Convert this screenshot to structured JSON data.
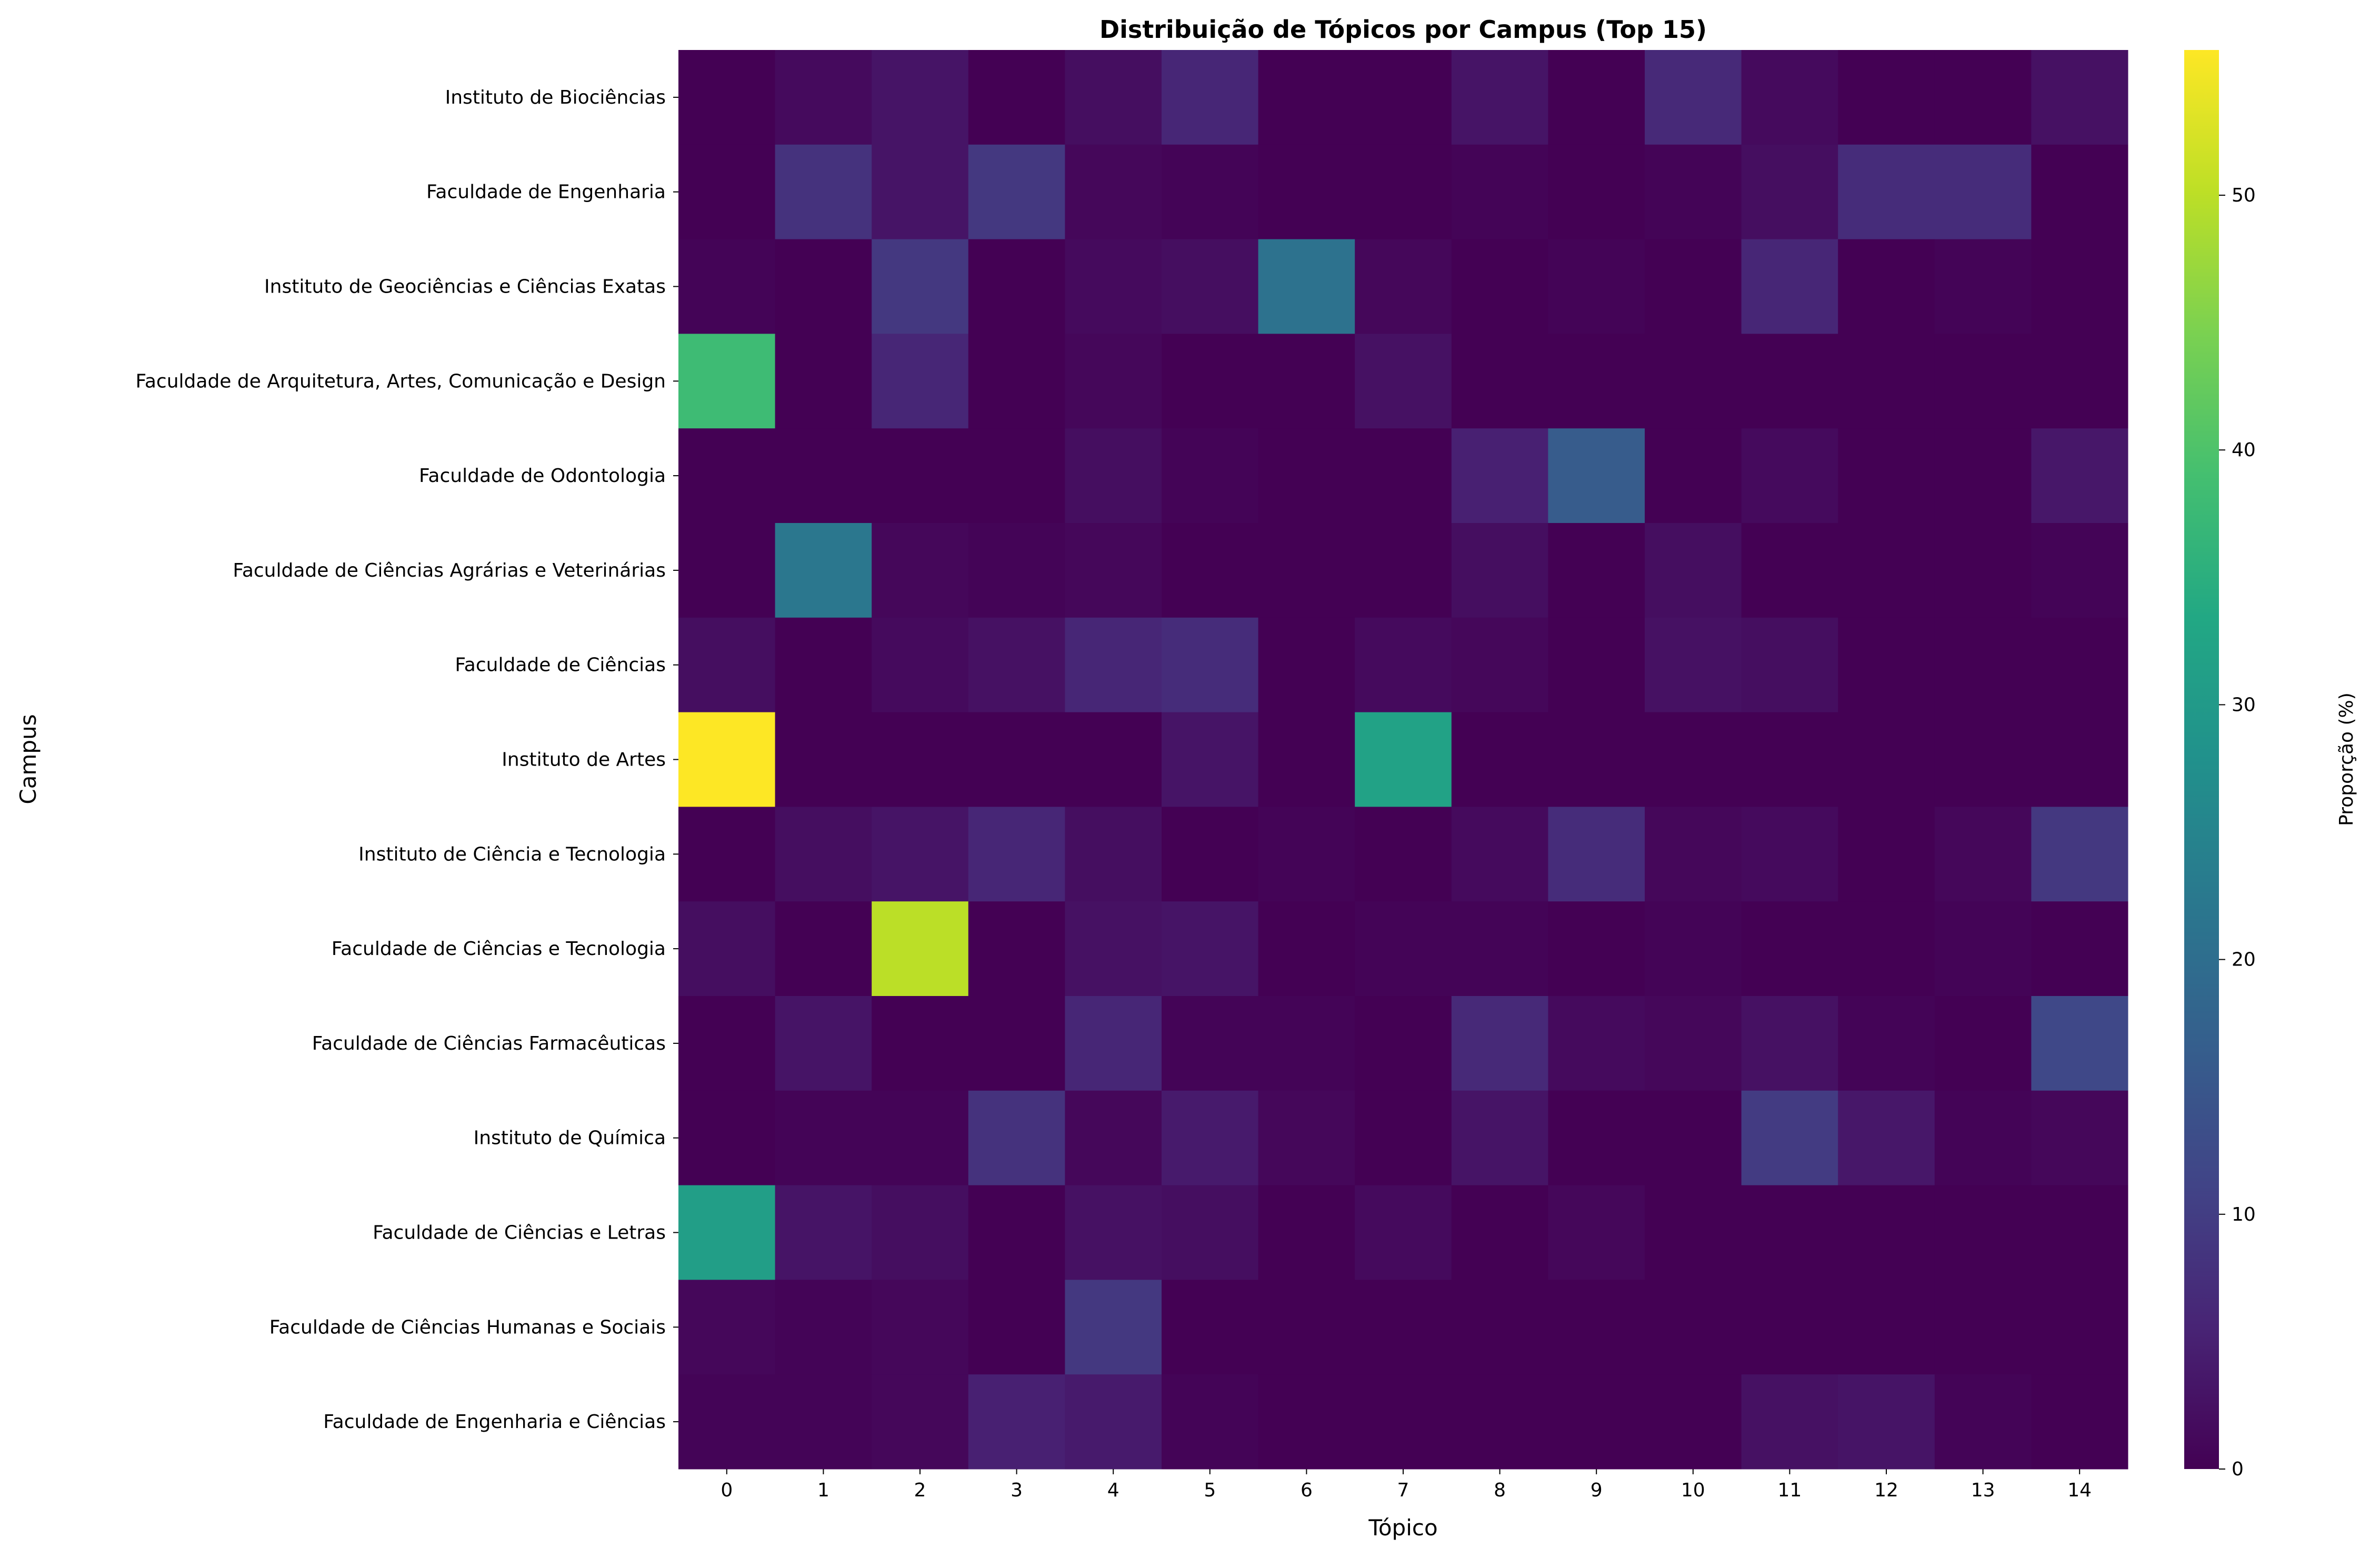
{
  "chart_data": {
    "type": "heatmap",
    "title": "Distribuição de Tópicos por Campus (Top 15)",
    "xlabel": "Tópico",
    "ylabel": "Campus",
    "colorbar_label": "Proporção (%)",
    "colormap": "viridis",
    "vmin": 0,
    "vmax": 55.7,
    "colorbar_ticks": [
      0,
      10,
      20,
      30,
      40,
      50
    ],
    "x_categories": [
      "0",
      "1",
      "2",
      "3",
      "4",
      "5",
      "6",
      "7",
      "8",
      "9",
      "10",
      "11",
      "12",
      "13",
      "14"
    ],
    "y_categories": [
      "Instituto de Biociências",
      "Faculdade de Engenharia",
      "Instituto de Geociências e Ciências Exatas",
      "Faculdade de Arquitetura, Artes, Comunicação e Design",
      "Faculdade de Odontologia",
      "Faculdade de Ciências Agrárias e Veterinárias",
      "Faculdade de Ciências",
      "Instituto de Artes",
      "Instituto de Ciência e Tecnologia",
      "Faculdade de Ciências e Tecnologia",
      "Faculdade de Ciências Farmacêuticas",
      "Instituto de Química",
      "Faculdade de Ciências e Letras",
      "Faculdade de Ciências Humanas e Sociais",
      "Faculdade de Engenharia e Ciências"
    ],
    "values": [
      [
        0,
        1.5,
        3,
        0,
        2,
        6,
        0,
        0,
        3,
        0,
        6.5,
        1.5,
        0,
        0,
        2.5
      ],
      [
        0,
        8,
        3,
        9,
        1,
        0.5,
        0,
        0,
        0.5,
        0,
        0.5,
        2,
        7,
        7,
        0
      ],
      [
        0.5,
        0,
        9,
        0,
        1.5,
        2,
        21,
        1,
        0,
        0.5,
        0,
        6,
        0,
        0.5,
        0
      ],
      [
        38,
        0,
        6,
        0,
        1,
        0,
        0,
        2.5,
        0,
        0,
        0,
        0,
        0,
        0,
        0
      ],
      [
        0,
        0,
        0,
        0,
        2,
        0.5,
        0,
        0,
        5,
        16,
        0,
        1.5,
        0,
        0,
        3.5
      ],
      [
        0,
        22,
        1,
        0.5,
        1,
        0,
        0,
        0,
        2,
        0,
        2,
        0,
        0,
        0,
        0.5
      ],
      [
        2,
        0,
        1.5,
        2.5,
        6,
        7,
        0,
        1.5,
        1,
        0,
        2.5,
        2,
        0,
        0,
        0
      ],
      [
        55.7,
        0,
        0,
        0,
        0,
        3,
        0,
        32,
        0,
        0,
        0,
        0,
        0,
        0,
        0
      ],
      [
        0,
        2,
        3,
        6,
        2,
        0,
        0.5,
        0,
        1.5,
        7,
        1,
        1.5,
        0,
        1,
        9
      ],
      [
        2,
        0,
        50,
        0,
        2.5,
        3,
        0,
        0.5,
        0.5,
        0,
        0.5,
        0,
        0,
        0.5,
        0
      ],
      [
        0,
        3,
        0,
        0,
        6,
        0.5,
        0.5,
        0,
        6.5,
        1.5,
        1,
        2.5,
        0.5,
        0,
        12
      ],
      [
        0,
        0.5,
        0.5,
        8,
        1,
        4,
        1,
        0,
        3,
        0,
        0,
        9.5,
        3.5,
        0.5,
        1
      ],
      [
        31,
        3,
        2,
        0,
        2.5,
        2,
        0,
        1.5,
        0,
        1,
        0,
        0,
        0,
        0,
        0
      ],
      [
        1,
        0.5,
        1,
        0,
        9,
        0,
        0,
        0,
        0,
        0,
        0,
        0,
        0,
        0,
        0
      ],
      [
        0.5,
        0.5,
        1,
        5,
        4,
        0.5,
        0,
        0,
        0,
        0,
        0,
        2.5,
        3,
        0.5,
        0
      ]
    ]
  }
}
